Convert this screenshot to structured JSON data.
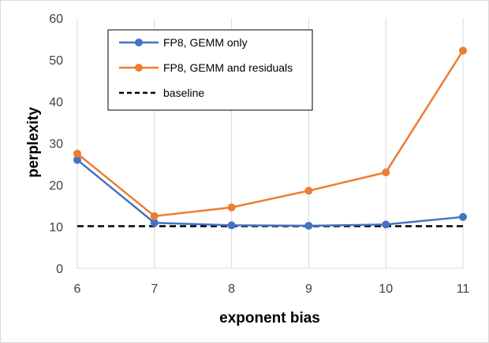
{
  "chart_data": {
    "type": "line",
    "title": "",
    "xlabel": "exponent bias",
    "ylabel": "perplexity",
    "x": [
      6,
      7,
      8,
      9,
      10,
      11
    ],
    "x_ticks": [
      "6",
      "7",
      "8",
      "9",
      "10",
      "11"
    ],
    "y_ticks": [
      "0",
      "10",
      "20",
      "30",
      "40",
      "50",
      "60"
    ],
    "xlim": [
      6,
      11
    ],
    "ylim": [
      0,
      60
    ],
    "grid": "vertical",
    "legend_position": "top-left",
    "series": [
      {
        "name": "FP8, GEMM only",
        "color": "#4472c4",
        "style": "solid-markers",
        "values": [
          26.0,
          10.9,
          10.3,
          10.2,
          10.5,
          12.3
        ]
      },
      {
        "name": "FP8, GEMM and residuals",
        "color": "#ed7d31",
        "style": "solid-markers",
        "values": [
          27.5,
          12.5,
          14.6,
          18.6,
          23.0,
          52.2
        ]
      },
      {
        "name": "baseline",
        "color": "#000000",
        "style": "dashed",
        "values": [
          10.1,
          10.1,
          10.1,
          10.1,
          10.1,
          10.1
        ]
      }
    ]
  }
}
